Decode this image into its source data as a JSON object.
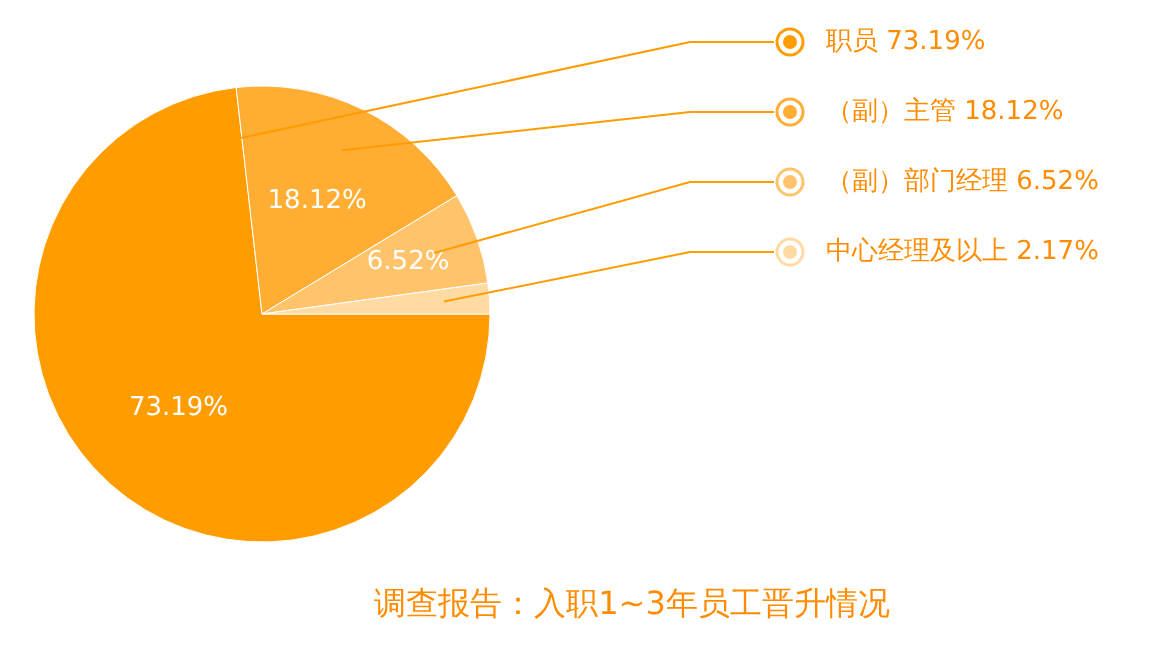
{
  "chart_data": {
    "type": "pie",
    "title": "调查报告：入职1~3年员工晋升情况",
    "categories": [
      "职员",
      "（副）主管",
      "（副）部门经理",
      "中心经理及以上"
    ],
    "values": [
      73.19,
      18.12,
      6.52,
      2.17
    ],
    "value_labels": [
      "73.19%",
      "18.12%",
      "6.52%",
      "2.17%"
    ],
    "colors": [
      "#ff9c00",
      "#ffad33",
      "#ffc46b",
      "#ffdba3"
    ],
    "legend": "right"
  }
}
